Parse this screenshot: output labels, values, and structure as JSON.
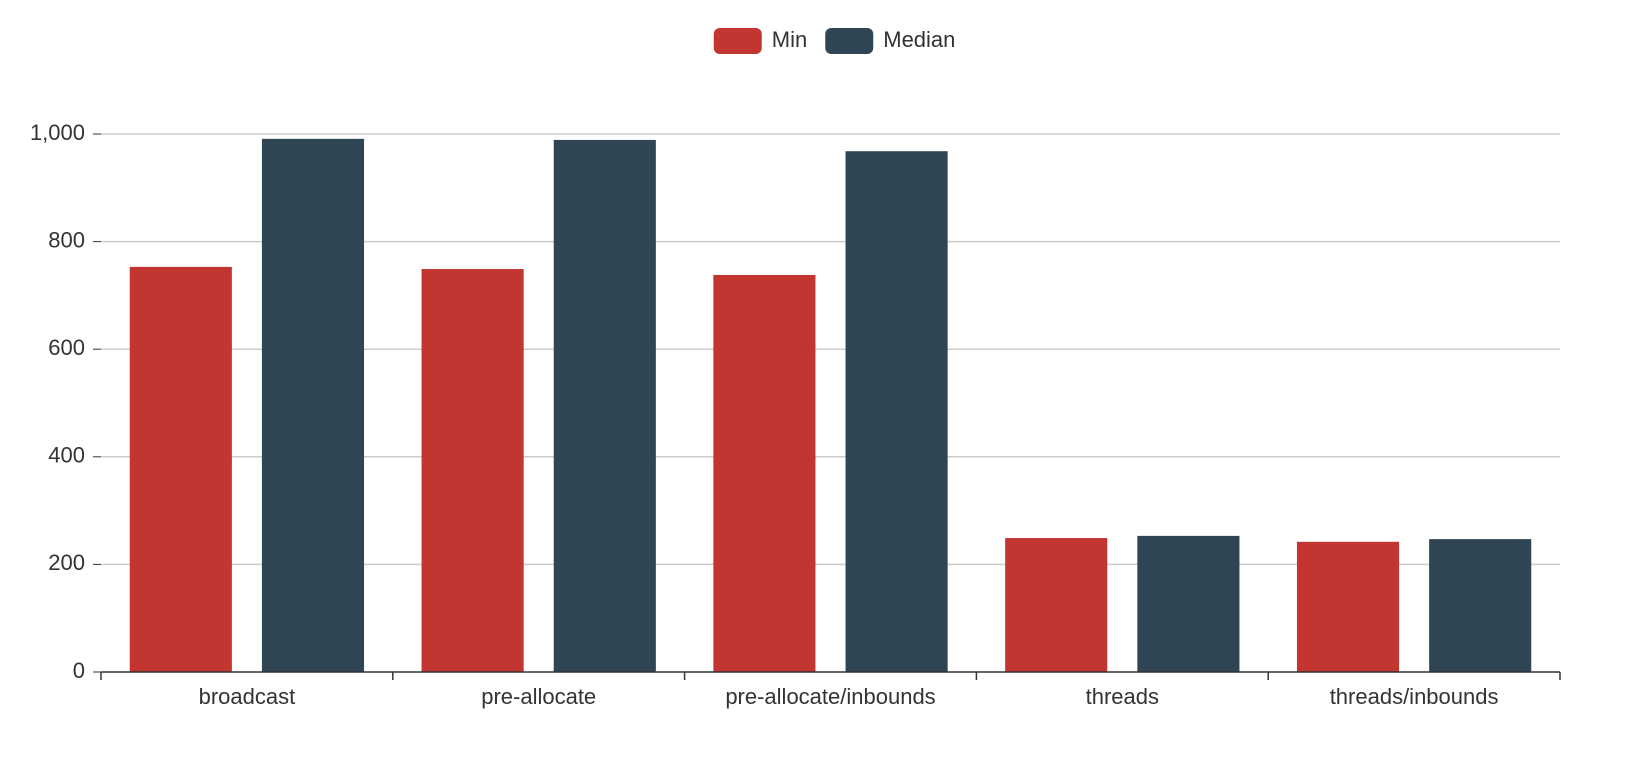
{
  "chart_data": {
    "type": "bar",
    "categories": [
      "broadcast",
      "pre-allocate",
      "pre-allocate/inbounds",
      "threads",
      "threads/inbounds"
    ],
    "series": [
      {
        "name": "Min",
        "color": "#c23531",
        "values": [
          753,
          749,
          738,
          249,
          242
        ]
      },
      {
        "name": "Median",
        "color": "#2f4554",
        "values": [
          991,
          989,
          968,
          253,
          247
        ]
      }
    ],
    "ylim": [
      0,
      1000
    ],
    "yticks": [
      0,
      200,
      400,
      600,
      800,
      {
        "value": 1000,
        "label": "1,000"
      }
    ],
    "grid": true,
    "legend": "top"
  }
}
